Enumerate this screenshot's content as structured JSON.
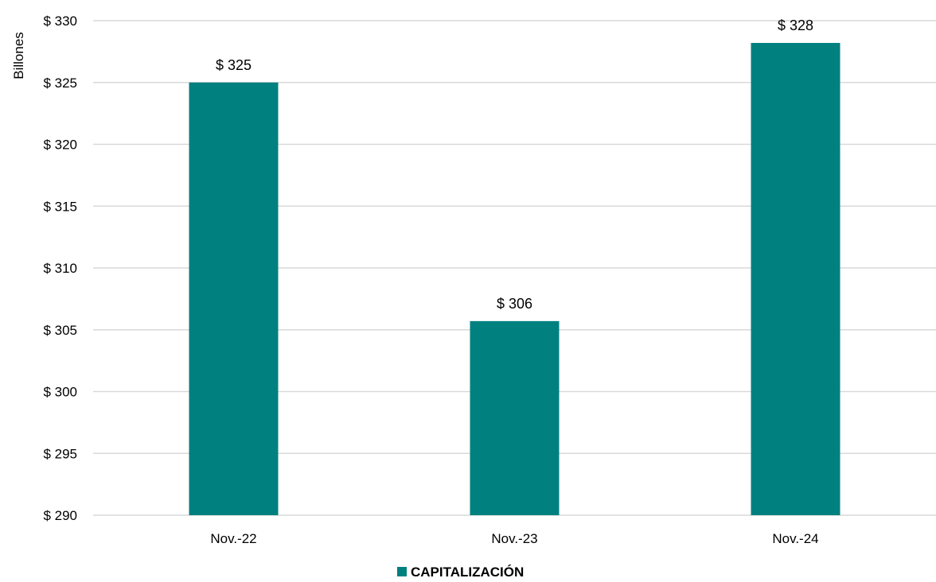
{
  "chart_data": {
    "type": "bar",
    "categories": [
      "Nov.-22",
      "Nov.-23",
      "Nov.-24"
    ],
    "series": [
      {
        "name": "CAPITALIZACIÓN",
        "values": [
          325,
          305.7,
          328.2
        ],
        "labels": [
          "$ 325",
          "$ 306",
          "$ 328"
        ],
        "color": "#00807f"
      }
    ],
    "ylabel": "Billones",
    "ylim": [
      290,
      330
    ],
    "yticks": [
      290,
      295,
      300,
      305,
      310,
      315,
      320,
      325,
      330
    ],
    "ytick_labels": [
      "$ 290",
      "$ 295",
      "$ 300",
      "$ 305",
      "$ 310",
      "$ 315",
      "$ 320",
      "$ 325",
      "$ 330"
    ],
    "grid": true,
    "legend_position": "bottom-center"
  }
}
